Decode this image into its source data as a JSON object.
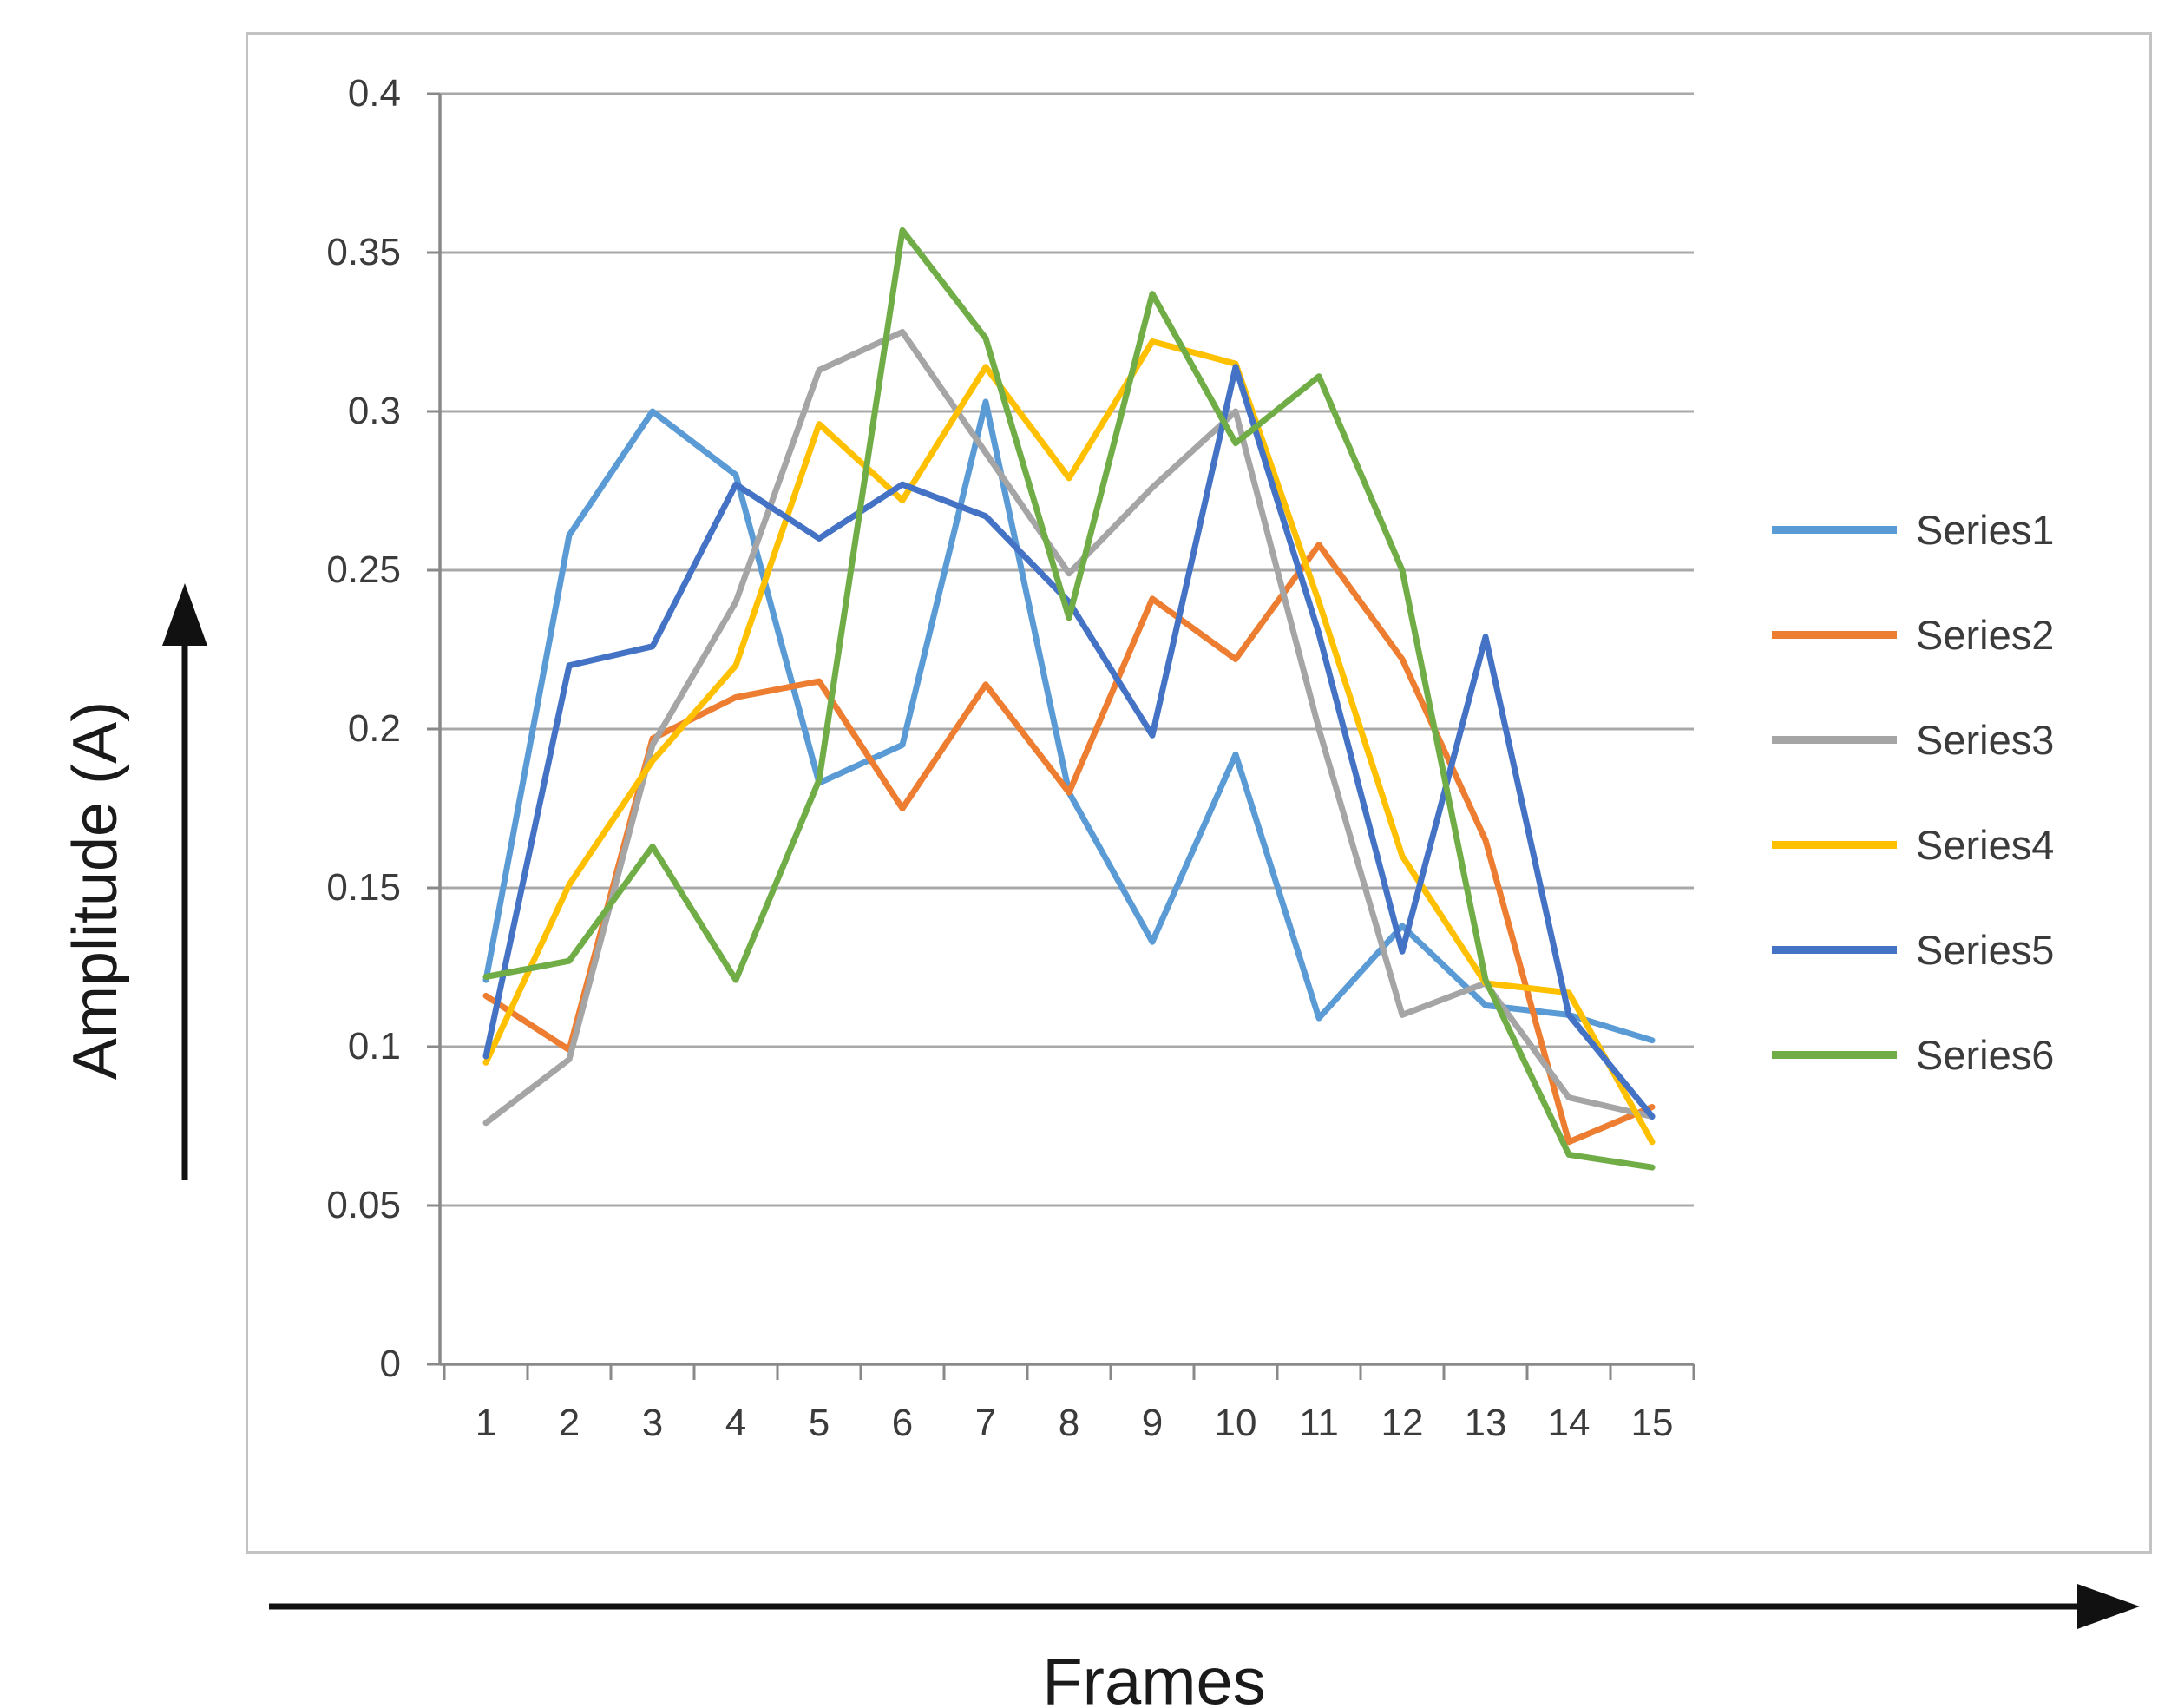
{
  "chart_data": {
    "type": "line",
    "title": "",
    "xlabel": "Frames",
    "ylabel": "Amplitude (A)",
    "categories": [
      1,
      2,
      3,
      4,
      5,
      6,
      7,
      8,
      9,
      10,
      11,
      12,
      13,
      14,
      15
    ],
    "ylim": [
      0,
      0.4
    ],
    "yticks": [
      0.4,
      0.35,
      0.3,
      0.25,
      0.2,
      0.15,
      0.1,
      0.05,
      0
    ],
    "ytick_labels": [
      "0.4",
      "0.35",
      "0.3",
      "0.25",
      "0.2",
      "0.15",
      "0.1",
      "0.05",
      "0"
    ],
    "grid": "horizontal",
    "legend_position": "right",
    "series": [
      {
        "name": "Series1",
        "color": "#5B9BD5",
        "values": [
          0.121,
          0.261,
          0.3,
          0.28,
          0.183,
          0.195,
          0.303,
          0.18,
          0.133,
          0.192,
          0.109,
          0.138,
          0.113,
          0.11,
          0.102
        ]
      },
      {
        "name": "Series2",
        "color": "#ED7D31",
        "values": [
          0.116,
          0.099,
          0.197,
          0.21,
          0.215,
          0.175,
          0.214,
          0.18,
          0.241,
          0.222,
          0.258,
          0.222,
          0.165,
          0.07,
          0.081
        ]
      },
      {
        "name": "Series3",
        "color": "#A5A5A5",
        "values": [
          0.076,
          0.096,
          0.195,
          0.24,
          0.313,
          0.325,
          0.287,
          0.249,
          0.276,
          0.3,
          0.2,
          0.11,
          0.12,
          0.084,
          0.078
        ]
      },
      {
        "name": "Series4",
        "color": "#FFC000",
        "values": [
          0.095,
          0.151,
          0.19,
          0.22,
          0.296,
          0.272,
          0.314,
          0.279,
          0.322,
          0.315,
          0.24,
          0.16,
          0.12,
          0.117,
          0.07
        ]
      },
      {
        "name": "Series5",
        "color": "#4472C4",
        "values": [
          0.097,
          0.22,
          0.226,
          0.277,
          0.26,
          0.277,
          0.267,
          0.24,
          0.198,
          0.314,
          0.23,
          0.13,
          0.229,
          0.11,
          0.078
        ]
      },
      {
        "name": "Series6",
        "color": "#70AD47",
        "values": [
          0.122,
          0.127,
          0.163,
          0.121,
          0.184,
          0.357,
          0.323,
          0.235,
          0.337,
          0.29,
          0.311,
          0.25,
          0.121,
          0.066,
          0.062
        ]
      }
    ]
  },
  "axes": {
    "y_title": "Amplitude (A)",
    "x_title": "Frames"
  },
  "style_colors": {
    "gridline": "#A8A8A8",
    "axis_line": "#898989",
    "tick_label": "#3b3b3b",
    "frame_border": "#c3c3c3",
    "arrow": "#111111"
  }
}
